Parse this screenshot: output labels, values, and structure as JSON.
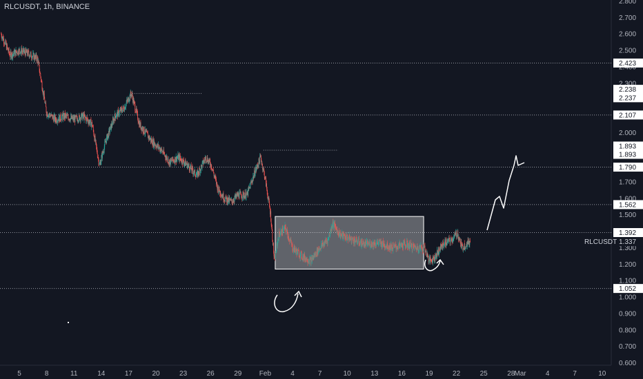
{
  "header": {
    "title": "RLCUSDT, 1h, BINANCE"
  },
  "colors": {
    "background": "#131722",
    "up": "#26a69a",
    "down": "#ef5350",
    "axis_text": "#b2b5be",
    "dotted_line": "#9598a1",
    "tag_bg": "#ffffff",
    "tag_text": "#131722",
    "annotation": "#ffffff"
  },
  "chart_data": {
    "type": "candlestick",
    "symbol": "RLCUSDT",
    "interval": "1h",
    "exchange": "BINANCE",
    "last_price_label": "RLCUSDT",
    "last_price": 1.337,
    "ylim": [
      0.6,
      2.8
    ],
    "y_ticks": [
      "0.600",
      "0.700",
      "0.800",
      "0.900",
      "1.000",
      "1.100",
      "1.200",
      "1.300",
      "1.400",
      "1.500",
      "1.600",
      "1.700",
      "1.800",
      "1.900",
      "2.000",
      "2.100",
      "2.200",
      "2.300",
      "2.400",
      "2.500",
      "2.600",
      "2.700",
      "2.800"
    ],
    "x_ticks": [
      "5",
      "8",
      "11",
      "14",
      "17",
      "20",
      "23",
      "26",
      "29",
      "Feb",
      "4",
      "7",
      "10",
      "13",
      "16",
      "19",
      "22",
      "25",
      "28",
      "Mar",
      "4",
      "7",
      "10"
    ],
    "x_tick_days": [
      5,
      8,
      11,
      14,
      17,
      20,
      23,
      26,
      29,
      32,
      35,
      38,
      41,
      44,
      47,
      50,
      53,
      56,
      59,
      60,
      63,
      66,
      69
    ],
    "xlim_days": [
      3,
      69.5
    ],
    "horizontal_levels": [
      2.423,
      2.107,
      1.79,
      1.562,
      1.392,
      1.052
    ],
    "price_tags": [
      "2.423",
      "2.238",
      "2.237",
      "2.107",
      "1.893",
      "1.893",
      "1.790",
      "1.562",
      "1.392",
      "1.337",
      "1.052"
    ],
    "price_tag_values": [
      2.423,
      2.238,
      2.237,
      2.107,
      1.893,
      1.893,
      1.79,
      1.562,
      1.392,
      1.337,
      1.052
    ],
    "short_levels": [
      {
        "value": 2.238,
        "from_day": 17.2,
        "to_day": 25.0
      },
      {
        "value": 1.893,
        "from_day": 31.8,
        "to_day": 40.0
      }
    ],
    "range_box": {
      "from_day": 33.1,
      "to_day": 49.4,
      "low": 1.17,
      "high": 1.49
    },
    "price_path": [
      [
        3,
        2.6
      ],
      [
        4,
        2.47
      ],
      [
        5,
        2.5
      ],
      [
        6,
        2.48
      ],
      [
        7,
        2.45
      ],
      [
        8,
        2.12
      ],
      [
        9,
        2.08
      ],
      [
        10,
        2.1
      ],
      [
        11,
        2.08
      ],
      [
        12,
        2.1
      ],
      [
        13,
        2.05
      ],
      [
        13.8,
        1.8
      ],
      [
        14.5,
        1.95
      ],
      [
        15.5,
        2.1
      ],
      [
        16.5,
        2.15
      ],
      [
        17.3,
        2.24
      ],
      [
        18.2,
        2.05
      ],
      [
        19.5,
        1.95
      ],
      [
        20.5,
        1.9
      ],
      [
        21.5,
        1.82
      ],
      [
        22.5,
        1.85
      ],
      [
        23.5,
        1.8
      ],
      [
        24.5,
        1.74
      ],
      [
        25.5,
        1.85
      ],
      [
        26.1,
        1.8
      ],
      [
        26.8,
        1.66
      ],
      [
        27.5,
        1.6
      ],
      [
        28.3,
        1.58
      ],
      [
        29,
        1.62
      ],
      [
        30,
        1.62
      ],
      [
        30.8,
        1.75
      ],
      [
        31.5,
        1.85
      ],
      [
        32.0,
        1.72
      ],
      [
        32.6,
        1.5
      ],
      [
        33.0,
        1.22
      ],
      [
        33.5,
        1.38
      ],
      [
        34.2,
        1.42
      ],
      [
        35,
        1.3
      ],
      [
        36,
        1.25
      ],
      [
        37,
        1.22
      ],
      [
        38,
        1.3
      ],
      [
        38.9,
        1.35
      ],
      [
        39.4,
        1.45
      ],
      [
        40.2,
        1.38
      ],
      [
        41.5,
        1.35
      ],
      [
        43,
        1.32
      ],
      [
        44.5,
        1.33
      ],
      [
        46,
        1.3
      ],
      [
        47.5,
        1.32
      ],
      [
        48.5,
        1.3
      ],
      [
        49.5,
        1.3
      ],
      [
        50,
        1.22
      ],
      [
        50.6,
        1.24
      ],
      [
        51.5,
        1.32
      ],
      [
        52.5,
        1.35
      ],
      [
        53.1,
        1.39
      ],
      [
        53.6,
        1.3
      ],
      [
        54.5,
        1.34
      ]
    ],
    "annotations": [
      "curved arrow up at Feb low",
      "curved arrow up near 19 Feb",
      "projected path up to around 1.88"
    ]
  }
}
